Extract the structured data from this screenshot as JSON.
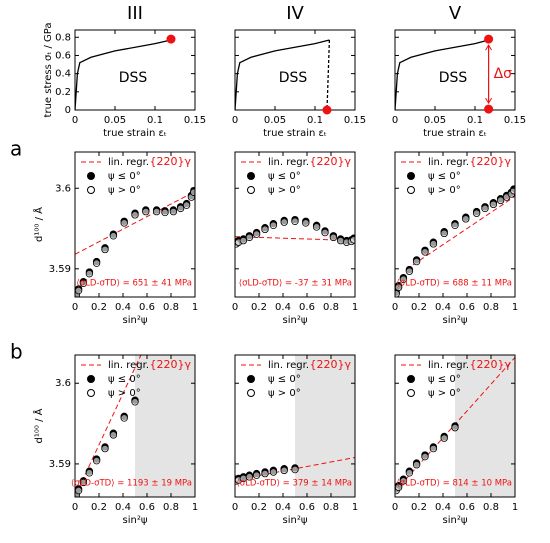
{
  "chart_data": [
    {
      "type": "line",
      "title": "III",
      "xlabel": "true strain εₜ",
      "ylabel": "true stress σₜ / GPa",
      "ytick_labels": true,
      "xlim": [
        0,
        0.15
      ],
      "xticks": [
        0,
        0.05,
        0.1,
        0.15
      ],
      "ylim": [
        0,
        0.88
      ],
      "yticks": [
        0,
        0.2,
        0.4,
        0.6,
        0.8
      ],
      "annotation": "DSS",
      "series": [
        {
          "color": "#000000",
          "x": [
            0,
            0.003,
            0.006,
            0.02,
            0.05,
            0.1,
            0.12
          ],
          "values": [
            0,
            0.4,
            0.52,
            0.58,
            0.65,
            0.73,
            0.77
          ]
        }
      ],
      "markers": {
        "color": "#ee1111",
        "x": [
          0.12
        ],
        "values": [
          0.78
        ]
      }
    },
    {
      "type": "line",
      "title": "IV",
      "xlabel": "true strain εₜ",
      "ytick_labels": false,
      "xlim": [
        0,
        0.15
      ],
      "xticks": [
        0,
        0.05,
        0.1,
        0.15
      ],
      "ylim": [
        0,
        0.88
      ],
      "yticks": [
        0,
        0.2,
        0.4,
        0.6,
        0.8
      ],
      "annotation": "DSS",
      "series": [
        {
          "color": "#000000",
          "x": [
            0,
            0.003,
            0.006,
            0.02,
            0.05,
            0.1,
            0.118
          ],
          "values": [
            0,
            0.4,
            0.52,
            0.58,
            0.65,
            0.73,
            0.77
          ]
        },
        {
          "color": "#000000",
          "dash": true,
          "x": [
            0.118,
            0.115
          ],
          "values": [
            0.77,
            0
          ]
        }
      ],
      "markers": {
        "color": "#ee1111",
        "x": [
          0.115
        ],
        "values": [
          0
        ]
      }
    },
    {
      "type": "line",
      "title": "V",
      "xlabel": "true strain εₜ",
      "ytick_labels": false,
      "xlim": [
        0,
        0.15
      ],
      "xticks": [
        0,
        0.05,
        0.1,
        0.15
      ],
      "ylim": [
        0,
        0.88
      ],
      "yticks": [
        0,
        0.2,
        0.4,
        0.6,
        0.8
      ],
      "annotation": "DSS",
      "annotation2": "Δσ",
      "series": [
        {
          "color": "#000000",
          "x": [
            0,
            0.003,
            0.006,
            0.02,
            0.05,
            0.1,
            0.117
          ],
          "values": [
            0,
            0.4,
            0.52,
            0.58,
            0.65,
            0.73,
            0.77
          ]
        }
      ],
      "markers": {
        "color": "#ee1111",
        "x": [
          0.117,
          0.117
        ],
        "values": [
          0.78,
          0.01
        ]
      }
    },
    {
      "type": "scatter",
      "label": "a",
      "xlabel": "sin²ψ",
      "ylabel": "d¹⁰⁰ / Å",
      "ytick_labels": true,
      "xlim": [
        0,
        1
      ],
      "xticks": [
        0,
        0.2,
        0.4,
        0.6,
        0.8,
        1
      ],
      "ylim": [
        3.5865,
        3.6045
      ],
      "yticks": [
        3.59,
        3.6
      ],
      "reflection": "{220}γ",
      "result": "⟨σLD-σTD⟩ = 651 ± 41 MPa",
      "x": [
        0.01,
        0.03,
        0.07,
        0.12,
        0.18,
        0.25,
        0.32,
        0.41,
        0.5,
        0.59,
        0.68,
        0.75,
        0.82,
        0.88,
        0.93,
        0.97,
        0.99
      ],
      "series": [
        {
          "name": "ψ ≤ 0°",
          "color": "#000000",
          "values": [
            3.5869,
            3.5875,
            3.5884,
            3.5896,
            3.5909,
            3.5926,
            3.5943,
            3.5959,
            3.5969,
            3.5973,
            3.5973,
            3.5972,
            3.5973,
            3.5977,
            3.5981,
            3.5991,
            3.5997
          ]
        },
        {
          "name": "ψ > 0°",
          "color": "none",
          "values": [
            3.5867,
            3.5873,
            3.5882,
            3.5894,
            3.5907,
            3.5924,
            3.5941,
            3.5957,
            3.5967,
            3.5971,
            3.5971,
            3.597,
            3.5971,
            3.5975,
            3.5979,
            3.5989,
            3.5995
          ]
        }
      ],
      "fit": {
        "name": "lin. regr.",
        "color": "#ee1111",
        "x": [
          0,
          1
        ],
        "values": [
          3.5918,
          3.5996
        ]
      }
    },
    {
      "type": "scatter",
      "xlabel": "sin²ψ",
      "ytick_labels": false,
      "xlim": [
        0,
        1
      ],
      "xticks": [
        0,
        0.2,
        0.4,
        0.6,
        0.8,
        1
      ],
      "ylim": [
        3.5865,
        3.6045
      ],
      "yticks": [
        3.59,
        3.6
      ],
      "reflection": "{220}γ",
      "result": "⟨σLD-σTD⟩ = -37 ± 31 MPa",
      "x": [
        0.01,
        0.03,
        0.07,
        0.12,
        0.18,
        0.25,
        0.32,
        0.41,
        0.5,
        0.59,
        0.68,
        0.75,
        0.82,
        0.88,
        0.93,
        0.97,
        0.99
      ],
      "series": [
        {
          "name": "ψ ≤ 0°",
          "color": "#000000",
          "values": [
            3.5933,
            3.5935,
            3.5937,
            3.5941,
            3.5945,
            3.5951,
            3.5956,
            3.596,
            3.5961,
            3.5959,
            3.5954,
            3.5947,
            3.5941,
            3.5937,
            3.5935,
            3.5936,
            3.5938
          ]
        },
        {
          "name": "ψ > 0°",
          "color": "none",
          "values": [
            3.5931,
            3.5933,
            3.5935,
            3.5939,
            3.5943,
            3.5949,
            3.5954,
            3.5958,
            3.5959,
            3.5957,
            3.5952,
            3.5945,
            3.5939,
            3.5935,
            3.5933,
            3.5934,
            3.5936
          ]
        }
      ],
      "fit": {
        "name": "lin. regr.",
        "color": "#ee1111",
        "x": [
          0,
          1
        ],
        "values": [
          3.594,
          3.5935
        ]
      }
    },
    {
      "type": "scatter",
      "xlabel": "sin²ψ",
      "ytick_labels": false,
      "xlim": [
        0,
        1
      ],
      "xticks": [
        0,
        0.2,
        0.4,
        0.6,
        0.8,
        1
      ],
      "ylim": [
        3.5865,
        3.6045
      ],
      "yticks": [
        3.59,
        3.6
      ],
      "reflection": "{220}γ",
      "result": "⟨σLD-σTD⟩ = 688 ± 11 MPa",
      "x": [
        0.01,
        0.03,
        0.07,
        0.12,
        0.18,
        0.25,
        0.32,
        0.41,
        0.5,
        0.59,
        0.68,
        0.75,
        0.82,
        0.88,
        0.93,
        0.97,
        0.99
      ],
      "series": [
        {
          "name": "ψ ≤ 0°",
          "color": "#000000",
          "values": [
            3.5871,
            3.5879,
            3.5889,
            3.5899,
            3.5911,
            3.5923,
            3.5933,
            3.5946,
            3.5956,
            3.5964,
            3.5971,
            3.5977,
            3.5982,
            3.5987,
            3.5991,
            3.5995,
            3.5999
          ]
        },
        {
          "name": "ψ > 0°",
          "color": "none",
          "values": [
            3.5869,
            3.5877,
            3.5887,
            3.5897,
            3.5909,
            3.5921,
            3.5931,
            3.5944,
            3.5954,
            3.5962,
            3.5969,
            3.5975,
            3.598,
            3.5985,
            3.5989,
            3.5993,
            3.5997
          ]
        }
      ],
      "fit": {
        "name": "lin. regr.",
        "color": "#ee1111",
        "x": [
          0.15,
          1
        ],
        "values": [
          3.5905,
          3.599
        ]
      }
    },
    {
      "type": "scatter",
      "label": "b",
      "xlabel": "sin²ψ",
      "ylabel": "d¹⁰⁰ / Å",
      "ytick_labels": true,
      "xlim": [
        0,
        1
      ],
      "xticks": [
        0,
        0.2,
        0.4,
        0.6,
        0.8,
        1
      ],
      "ylim": [
        3.5859,
        3.6035
      ],
      "yticks": [
        3.59,
        3.6
      ],
      "shade": [
        0.5,
        1
      ],
      "reflection": "{220}γ",
      "result": "⟨σLD-σTD⟩ = 1193 ± 19 MPa",
      "x": [
        0.01,
        0.03,
        0.07,
        0.12,
        0.18,
        0.25,
        0.32,
        0.41,
        0.5
      ],
      "series": [
        {
          "name": "ψ ≤ 0°",
          "color": "#000000",
          "values": [
            3.5863,
            3.5869,
            3.5879,
            3.5891,
            3.5906,
            3.5921,
            3.5938,
            3.5959,
            3.5979
          ]
        },
        {
          "name": "ψ > 0°",
          "color": "none",
          "values": [
            3.5861,
            3.5867,
            3.5877,
            3.5889,
            3.5904,
            3.5919,
            3.5936,
            3.5957,
            3.5977
          ]
        }
      ],
      "fit": {
        "name": "lin. regr.",
        "color": "#ee1111",
        "x": [
          0,
          0.55
        ],
        "values": [
          3.586,
          3.6035
        ]
      }
    },
    {
      "type": "scatter",
      "xlabel": "sin²ψ",
      "ytick_labels": false,
      "xlim": [
        0,
        1
      ],
      "xticks": [
        0,
        0.2,
        0.4,
        0.6,
        0.8,
        1
      ],
      "ylim": [
        3.5859,
        3.6035
      ],
      "yticks": [
        3.59,
        3.6
      ],
      "shade": [
        0.5,
        1
      ],
      "reflection": "{220}γ",
      "result": "⟨σLD-σTD⟩ = 379 ± 14 MPa",
      "x": [
        0.01,
        0.03,
        0.07,
        0.12,
        0.18,
        0.25,
        0.32,
        0.41,
        0.5
      ],
      "series": [
        {
          "name": "ψ ≤ 0°",
          "color": "#000000",
          "values": [
            3.5881,
            3.5882,
            3.5884,
            3.5886,
            3.5888,
            3.589,
            3.5892,
            3.5894,
            3.5895
          ]
        },
        {
          "name": "ψ > 0°",
          "color": "none",
          "values": [
            3.5879,
            3.588,
            3.5882,
            3.5884,
            3.5886,
            3.5888,
            3.589,
            3.5892,
            3.5893
          ]
        }
      ],
      "fit": {
        "name": "lin. regr.",
        "color": "#ee1111",
        "x": [
          0,
          1
        ],
        "values": [
          3.588,
          3.5908
        ]
      }
    },
    {
      "type": "scatter",
      "xlabel": "sin²ψ",
      "ytick_labels": false,
      "xlim": [
        0,
        1
      ],
      "xticks": [
        0,
        0.2,
        0.4,
        0.6,
        0.8,
        1
      ],
      "ylim": [
        3.5859,
        3.6035
      ],
      "yticks": [
        3.59,
        3.6
      ],
      "shade": [
        0.5,
        1
      ],
      "reflection": "{220}γ",
      "result": "⟨σLD-σTD⟩ = 814 ± 10 MPa",
      "x": [
        0.01,
        0.03,
        0.07,
        0.12,
        0.18,
        0.25,
        0.32,
        0.41,
        0.5
      ],
      "series": [
        {
          "name": "ψ ≤ 0°",
          "color": "#000000",
          "values": [
            3.5869,
            3.5873,
            3.5881,
            3.5891,
            3.5901,
            3.5911,
            3.5921,
            3.5934,
            3.5947
          ]
        },
        {
          "name": "ψ > 0°",
          "color": "none",
          "values": [
            3.5867,
            3.5871,
            3.5879,
            3.5889,
            3.5899,
            3.5909,
            3.5919,
            3.5932,
            3.5945
          ]
        }
      ],
      "fit": {
        "name": "lin. regr.",
        "color": "#ee1111",
        "x": [
          0,
          1
        ],
        "values": [
          3.5866,
          3.6032
        ]
      }
    }
  ]
}
